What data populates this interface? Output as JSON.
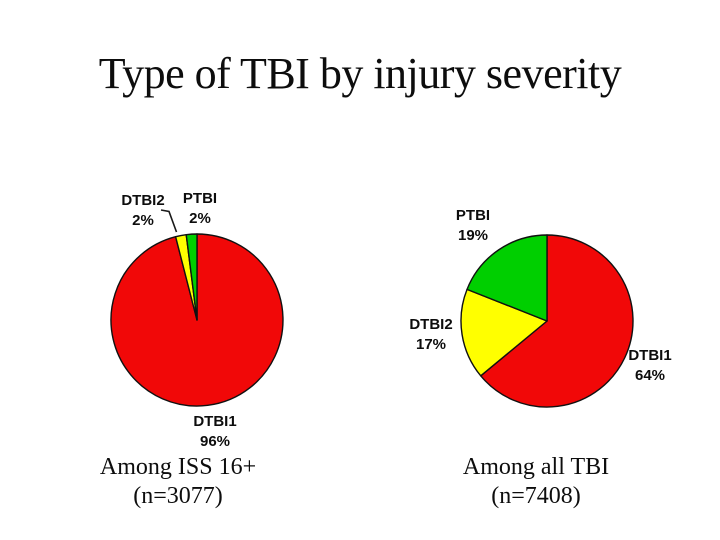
{
  "title": "Type of TBI by injury severity",
  "palette": {
    "dtbi1_red": "#f10808",
    "dtbi2_yellow": "#ffff00",
    "ptbi_green": "#00cf00",
    "outline": "#111111",
    "background": "#ffffff",
    "text": "#0d0d0d"
  },
  "chart_data": [
    {
      "type": "pie",
      "name": "pie-among-iss16",
      "categories": [
        "DTBI1",
        "DTBI2",
        "PTBI"
      ],
      "values": [
        96,
        2,
        2
      ],
      "unit": "%",
      "slice_colors": [
        "#f10808",
        "#ffff00",
        "#00cf00"
      ],
      "start_angle_deg": 0,
      "direction": "clockwise",
      "legend": "none",
      "labels": {
        "dtbi1": {
          "name": "DTBI1",
          "value": "96%"
        },
        "dtbi2": {
          "name": "DTBI2",
          "value": "2%"
        },
        "ptbi": {
          "name": "PTBI",
          "value": "2%"
        }
      },
      "caption": {
        "line1": "Among ISS 16+",
        "line2": "(n=3077)"
      }
    },
    {
      "type": "pie",
      "name": "pie-among-all-tbi",
      "categories": [
        "DTBI1",
        "DTBI2",
        "PTBI"
      ],
      "values": [
        64,
        17,
        19
      ],
      "unit": "%",
      "slice_colors": [
        "#f10808",
        "#ffff00",
        "#00cf00"
      ],
      "start_angle_deg": 0,
      "direction": "clockwise",
      "legend": "none",
      "labels": {
        "dtbi1": {
          "name": "DTBI1",
          "value": "64%"
        },
        "dtbi2": {
          "name": "DTBI2",
          "value": "17%"
        },
        "ptbi": {
          "name": "PTBI",
          "value": "19%"
        }
      },
      "caption": {
        "line1": "Among all TBI",
        "line2": "(n=7408)"
      }
    }
  ]
}
